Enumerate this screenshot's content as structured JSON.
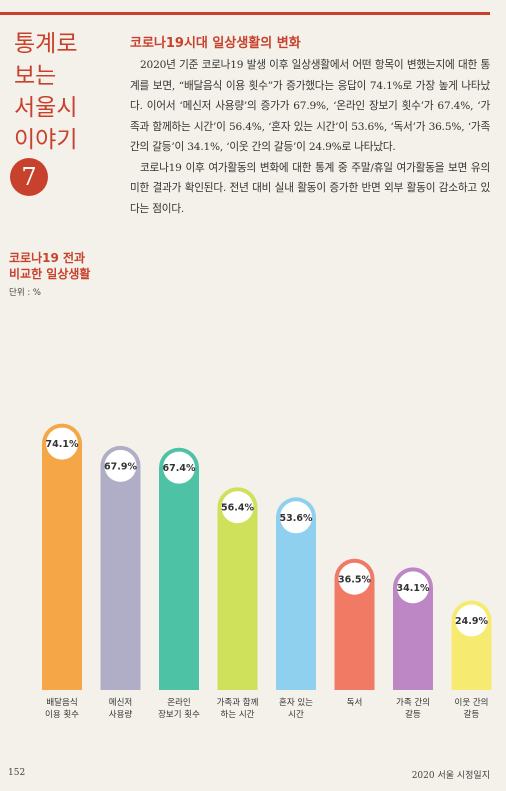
{
  "page": {
    "series_title_lines": [
      "통계로",
      "보는",
      "서울시",
      "이야기"
    ],
    "issue_number": "7",
    "page_number": "152",
    "book_title": "2020 서울 시정일지",
    "accent_color": "#c8412c"
  },
  "article": {
    "heading": "코로나19시대 일상생활의 변화",
    "paragraph1": "2020년 기준 코로나19 발생 이후 일상생활에서 어떤 항목이 변했는지에 대한 통계를 보면, “배달음식 이용 횟수”가 증가했다는 응답이 74.1%로 가장 높게 나타났다. 이어서 ‘메신저 사용량’의 증가가 67.9%, ‘온라인 장보기 횟수’가 67.4%, ‘가족과 함께하는 시간’이 56.4%, ‘혼자 있는 시간’이 53.6%, ‘독서’가 36.5%, ‘가족 간의 갈등’이 34.1%, ‘이웃 간의 갈등’이 24.9%로 나타났다.",
    "paragraph2": "코로나19 이후 여가활동의 변화에 대한 통계 중 주말/휴일 여가활동을 보면 유의미한 결과가 확인된다. 전년 대비 실내 활동이 증가한 반면 외부 활동이 감소하고 있다는 점이다."
  },
  "chart_data": {
    "type": "bar",
    "title_lines": [
      "코로나19 전과",
      "비교한 일상생활"
    ],
    "unit_label": "단위 : %",
    "ylim": [
      0,
      100
    ],
    "categories": [
      [
        "배달음식",
        "이용 횟수"
      ],
      [
        "메신저",
        "사용량"
      ],
      [
        "온라인",
        "장보기 횟수"
      ],
      [
        "가족과 함께",
        "하는 시간"
      ],
      [
        "혼자 있는",
        "시간"
      ],
      [
        "독서"
      ],
      [
        "가족 간의",
        "갈등"
      ],
      [
        "이웃 간의",
        "갈등"
      ]
    ],
    "values": [
      74.1,
      67.9,
      67.4,
      56.4,
      53.6,
      36.5,
      34.1,
      24.9
    ],
    "value_labels": [
      "74.1%",
      "67.9%",
      "67.4%",
      "56.4%",
      "53.6%",
      "36.5%",
      "34.1%",
      "24.9%"
    ],
    "colors": [
      "#f5a748",
      "#b0aec6",
      "#4ec2a5",
      "#cfe05a",
      "#8fd0ee",
      "#f07a63",
      "#bd86c4",
      "#f6eb70"
    ]
  }
}
